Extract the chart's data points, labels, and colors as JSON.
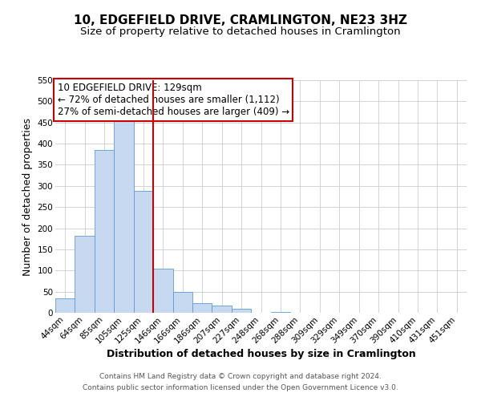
{
  "title": "10, EDGEFIELD DRIVE, CRAMLINGTON, NE23 3HZ",
  "subtitle": "Size of property relative to detached houses in Cramlington",
  "xlabel": "Distribution of detached houses by size in Cramlington",
  "ylabel": "Number of detached properties",
  "footer_line1": "Contains HM Land Registry data © Crown copyright and database right 2024.",
  "footer_line2": "Contains public sector information licensed under the Open Government Licence v3.0.",
  "bin_labels": [
    "44sqm",
    "64sqm",
    "85sqm",
    "105sqm",
    "125sqm",
    "146sqm",
    "166sqm",
    "186sqm",
    "207sqm",
    "227sqm",
    "248sqm",
    "268sqm",
    "288sqm",
    "309sqm",
    "329sqm",
    "349sqm",
    "370sqm",
    "390sqm",
    "410sqm",
    "431sqm",
    "451sqm"
  ],
  "bar_values": [
    35,
    183,
    385,
    455,
    288,
    105,
    49,
    22,
    18,
    9,
    0,
    2,
    0,
    0,
    0,
    0,
    0,
    0,
    0,
    0,
    0
  ],
  "bar_color": "#c6d9f1",
  "bar_edge_color": "#5b9bd5",
  "vline_x_index": 4,
  "vline_color": "#cc0000",
  "ann_line1": "10 EDGEFIELD DRIVE: 129sqm",
  "ann_line2": "← 72% of detached houses are smaller (1,112)",
  "ann_line3": "27% of semi-detached houses are larger (409) →",
  "ann_box_color": "#cc0000",
  "ylim_max": 550,
  "yticks": [
    0,
    50,
    100,
    150,
    200,
    250,
    300,
    350,
    400,
    450,
    500,
    550
  ],
  "grid_color": "#cccccc",
  "bg_color": "#ffffff",
  "title_fontsize": 11,
  "subtitle_fontsize": 9.5,
  "axis_label_fontsize": 9,
  "tick_fontsize": 7.5,
  "ann_fontsize": 8.5,
  "footer_fontsize": 6.5
}
